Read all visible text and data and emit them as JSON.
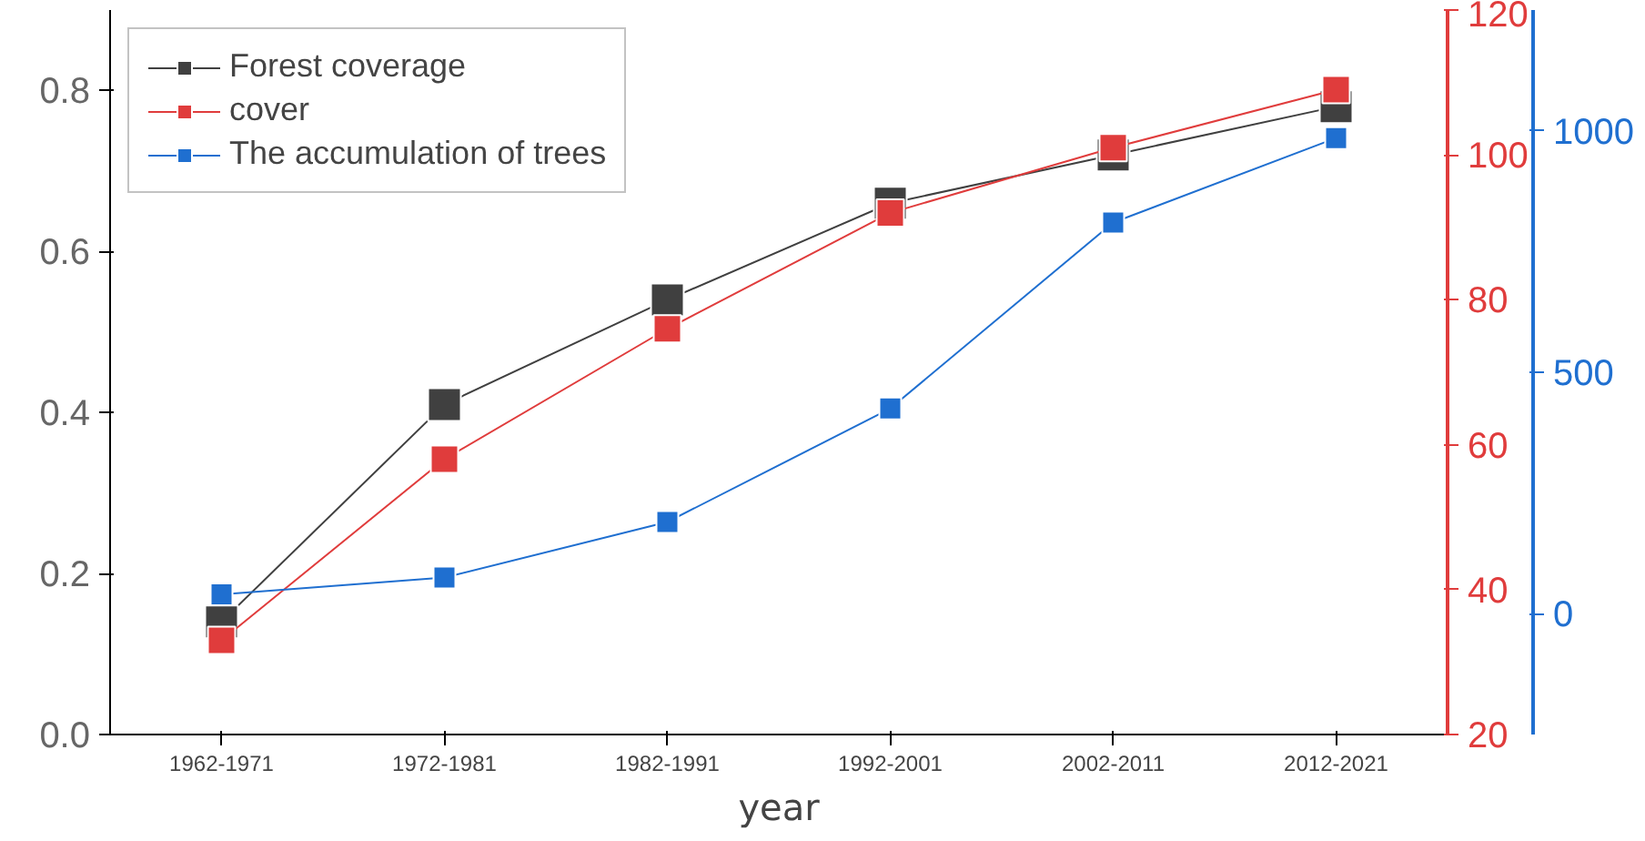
{
  "chart_data": {
    "type": "line",
    "xlabel": "year",
    "categories": [
      "1962-1971",
      "1972-1981",
      "1982-1991",
      "1992-2001",
      "2002-2011",
      "2012-2021"
    ],
    "series": [
      {
        "name": "Forest coverage",
        "color": "#404040",
        "values": [
          0.14,
          0.41,
          0.54,
          0.66,
          0.72,
          0.78
        ]
      },
      {
        "name": "cover",
        "color": "#e03c3c",
        "axis": "y2",
        "values": [
          33,
          58,
          76,
          92,
          101,
          109
        ]
      },
      {
        "name": "The accumulation of trees",
        "color": "#1f6fd0",
        "axis": "y3",
        "values": [
          40,
          75,
          190,
          425,
          810,
          985
        ]
      }
    ],
    "ylim": [
      0,
      0.9
    ],
    "yticks": [
      {
        "value": 0,
        "label": "0.0"
      },
      {
        "value": 0.2,
        "label": "0.2"
      },
      {
        "value": 0.4,
        "label": "0.4"
      },
      {
        "value": 0.6,
        "label": "0.6"
      },
      {
        "value": 0.8,
        "label": "0.8"
      }
    ],
    "y2lim": [
      20,
      120
    ],
    "y2ticks": [
      20,
      40,
      60,
      80,
      100,
      120
    ],
    "y3lim": [
      -250,
      1250
    ],
    "y3ticks": [
      0,
      500,
      1000
    ],
    "legend": "top left",
    "marker": "square",
    "line_style": "solid",
    "grid": false
  }
}
